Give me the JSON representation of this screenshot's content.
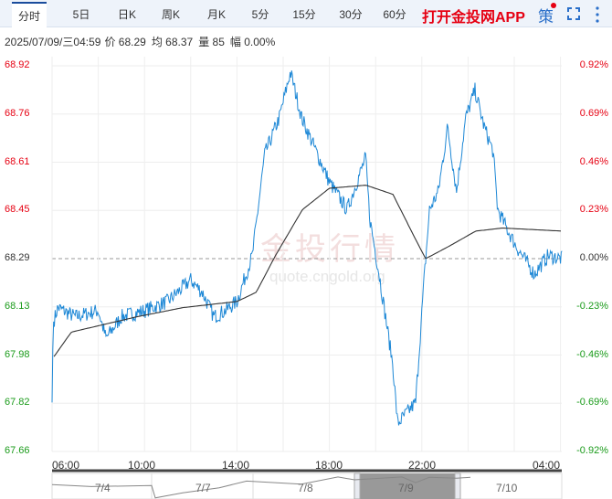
{
  "tabs": [
    {
      "label": "分时",
      "active": true
    },
    {
      "label": "5日"
    },
    {
      "label": "日K"
    },
    {
      "label": "周K"
    },
    {
      "label": "月K"
    },
    {
      "label": "5分"
    },
    {
      "label": "15分"
    },
    {
      "label": "30分"
    },
    {
      "label": "60分"
    }
  ],
  "promo": "打开金投网APP",
  "strategy_label": "策",
  "icons": {
    "fullscreen": "fullscreen-icon",
    "more": "more-vertical-icon"
  },
  "info": {
    "datetime": "2025/07/09/三04:59",
    "price": "价 68.29",
    "avg": "均 68.37",
    "volume": "量 85",
    "change": "幅 0.00%"
  },
  "watermark": {
    "text": "金投行情",
    "url": "quote.cngold.org"
  },
  "colors": {
    "up": "#e60012",
    "down": "#1a9b1a",
    "price_line": "#1e88d6",
    "avg_line": "#333333"
  },
  "minimap": {
    "dates": [
      "7/4",
      "7/7",
      "7/8",
      "7/9",
      "7/10"
    ],
    "selected": "7/9"
  },
  "chart_data": {
    "type": "line",
    "ylim": [
      67.66,
      68.92
    ],
    "reference_price": 68.29,
    "y_ticks_left": [
      "68.92",
      "68.76",
      "68.61",
      "68.45",
      "68.29",
      "68.13",
      "67.98",
      "67.82",
      "67.66"
    ],
    "y_ticks_right": [
      "0.92%",
      "0.69%",
      "0.46%",
      "0.23%",
      "0.00%",
      "-0.23%",
      "-0.46%",
      "-0.69%",
      "-0.92%"
    ],
    "x_ticks": [
      "06:00",
      "10:00",
      "14:00",
      "18:00",
      "22:00",
      "04:00"
    ],
    "grid": true,
    "series": [
      {
        "key": "price",
        "points": [
          [
            "06:00",
            67.82
          ],
          [
            "06:03",
            68.08
          ],
          [
            "06:15",
            68.13
          ],
          [
            "07:00",
            68.1
          ],
          [
            "08:00",
            68.12
          ],
          [
            "08:20",
            68.03
          ],
          [
            "09:00",
            68.1
          ],
          [
            "10:00",
            68.12
          ],
          [
            "11:00",
            68.15
          ],
          [
            "12:00",
            68.22
          ],
          [
            "12:30",
            68.18
          ],
          [
            "13:00",
            68.1
          ],
          [
            "13:30",
            68.12
          ],
          [
            "14:00",
            68.15
          ],
          [
            "14:40",
            68.3
          ],
          [
            "15:12",
            68.63
          ],
          [
            "15:50",
            68.75
          ],
          [
            "16:19",
            68.9
          ],
          [
            "16:48",
            68.75
          ],
          [
            "18:00",
            68.54
          ],
          [
            "18:46",
            68.45
          ],
          [
            "19:34",
            68.62
          ],
          [
            "19:45",
            68.42
          ],
          [
            "20:09",
            68.24
          ],
          [
            "20:45",
            67.94
          ],
          [
            "20:57",
            67.75
          ],
          [
            "21:44",
            67.82
          ],
          [
            "22:07",
            68.24
          ],
          [
            "22:20",
            68.45
          ],
          [
            "22:43",
            68.51
          ],
          [
            "23:07",
            68.72
          ],
          [
            "23:30",
            68.51
          ],
          [
            "23:54",
            68.75
          ],
          [
            "00:18",
            68.84
          ],
          [
            "00:42",
            68.72
          ],
          [
            "01:05",
            68.64
          ],
          [
            "01:17",
            68.45
          ],
          [
            "01:40",
            68.39
          ],
          [
            "02:05",
            68.33
          ],
          [
            "02:52",
            68.24
          ],
          [
            "03:28",
            68.3
          ],
          [
            "04:04",
            68.29
          ]
        ]
      },
      {
        "key": "average",
        "points": [
          [
            "06:05",
            67.97
          ],
          [
            "06:50",
            68.05
          ],
          [
            "09:40",
            68.1
          ],
          [
            "11:40",
            68.13
          ],
          [
            "14:00",
            68.15
          ],
          [
            "14:50",
            68.18
          ],
          [
            "15:40",
            68.3
          ],
          [
            "16:50",
            68.45
          ],
          [
            "18:00",
            68.52
          ],
          [
            "19:35",
            68.53
          ],
          [
            "20:45",
            68.5
          ],
          [
            "21:45",
            68.35
          ],
          [
            "22:10",
            68.29
          ],
          [
            "23:10",
            68.33
          ],
          [
            "00:20",
            68.38
          ],
          [
            "01:30",
            68.39
          ],
          [
            "04:04",
            68.38
          ]
        ]
      }
    ]
  }
}
